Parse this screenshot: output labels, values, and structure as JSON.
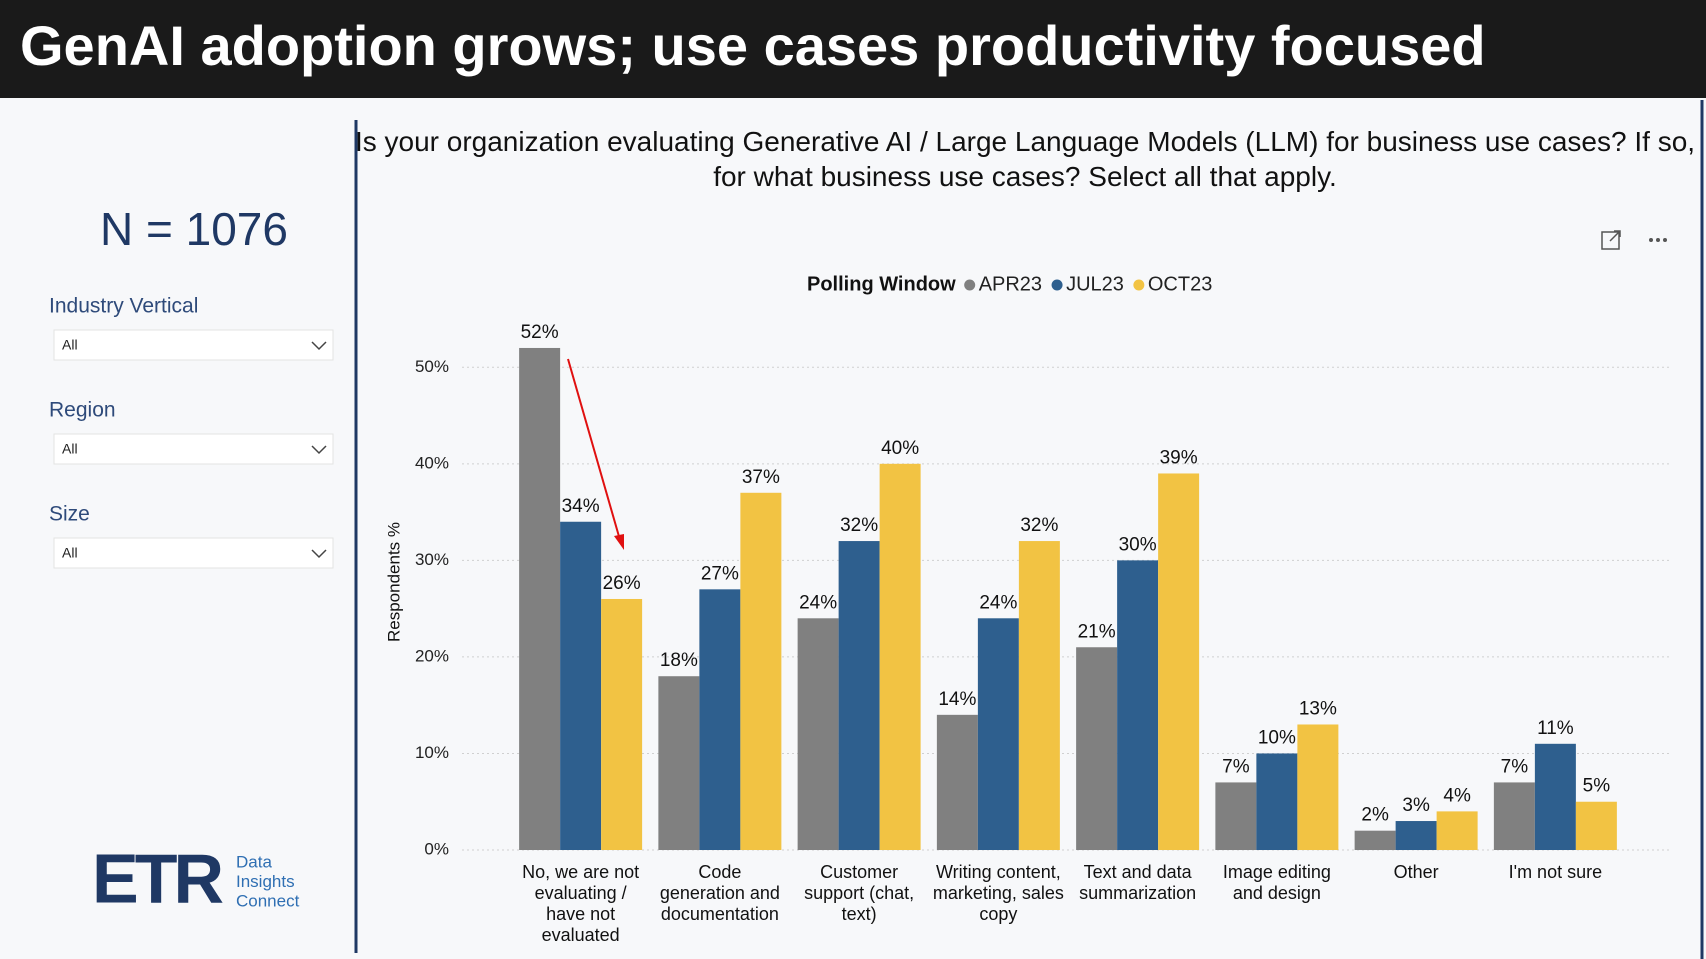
{
  "header": {
    "title": "GenAI adoption grows; use cases productivity focused"
  },
  "sidebar": {
    "n_label": "N = 1076",
    "filters": [
      {
        "label": "Industry Vertical",
        "value": "All"
      },
      {
        "label": "Region",
        "value": "All"
      },
      {
        "label": "Size",
        "value": "All"
      }
    ],
    "logo": {
      "mark": "ETR",
      "lines": [
        "Data",
        "Insights",
        "Connect"
      ]
    }
  },
  "chart_data": {
    "type": "bar",
    "title": "Is your organization evaluating Generative AI / Large Language Models (LLM) for business use cases? If so, for what business use cases? Select all that apply.",
    "legend_title": "Polling Window",
    "y_label": "Respondents %",
    "categories": [
      "No, we are not evaluating / have not evaluated",
      "Code generation and documentation",
      "Customer support (chat, text)",
      "Writing content, marketing, sales copy",
      "Text and data summarization",
      "Image editing and design",
      "Other",
      "I'm not sure"
    ],
    "series": [
      {
        "name": "APR23",
        "color": "#808080",
        "values": [
          52,
          18,
          24,
          14,
          21,
          7,
          2,
          7
        ],
        "value_labels": [
          "52%",
          "18%",
          "24%",
          "14%",
          "21%",
          "7%",
          "2%",
          "7%"
        ]
      },
      {
        "name": "JUL23",
        "color": "#2e5f8e",
        "values": [
          34,
          27,
          32,
          24,
          30,
          10,
          3,
          11
        ],
        "value_labels": [
          "34%",
          "27%",
          "32%",
          "24%",
          "30%",
          "10%",
          "3%",
          "11%"
        ]
      },
      {
        "name": "OCT23",
        "color": "#f2c343",
        "values": [
          26,
          37,
          40,
          32,
          39,
          13,
          4,
          5
        ],
        "value_labels": [
          "26%",
          "37%",
          "40%",
          "32%",
          "39%",
          "13%",
          "4%",
          "5%"
        ]
      }
    ],
    "ylim": [
      0,
      55
    ],
    "yticks": [
      {
        "value": 0,
        "label": "0%"
      },
      {
        "value": 10,
        "label": "10%"
      },
      {
        "value": 20,
        "label": "20%"
      },
      {
        "value": 30,
        "label": "30%"
      },
      {
        "value": 40,
        "label": "40%"
      },
      {
        "value": 50,
        "label": "50%"
      }
    ],
    "grid": true
  }
}
